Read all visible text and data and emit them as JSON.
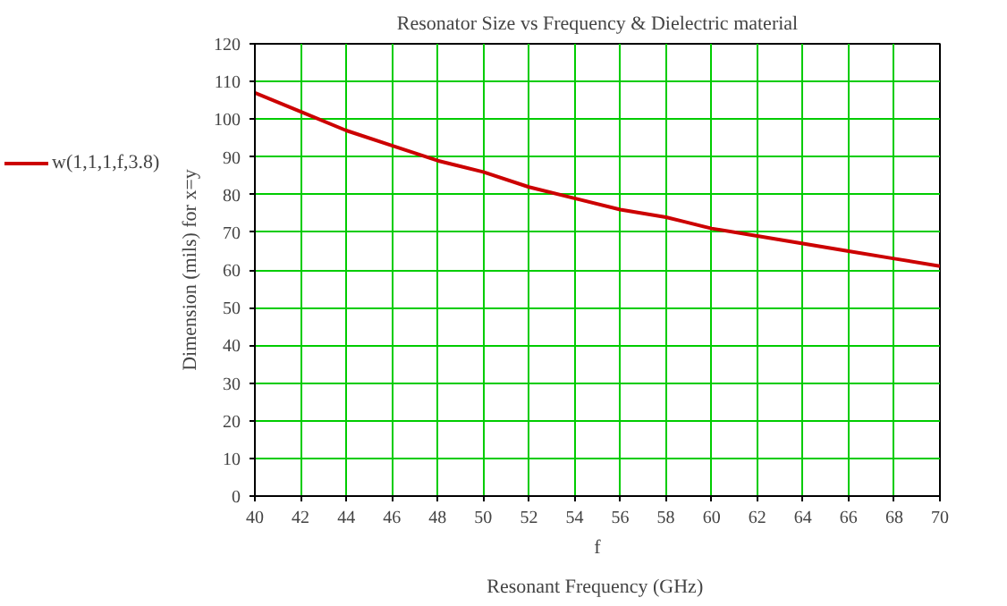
{
  "chart_data": {
    "type": "line",
    "title": "Resonator Size vs Frequency & Dielectric material",
    "xlabel": "f",
    "ylabel": "Dimension (mils) for x=y",
    "annotations": [
      "Resonant Frequency  (GHz)"
    ],
    "x": [
      40,
      42,
      44,
      46,
      48,
      50,
      52,
      54,
      56,
      58,
      60,
      62,
      64,
      66,
      68,
      70
    ],
    "series": [
      {
        "name": "w(1,1,1,f,3.8)",
        "color": "#cc0000",
        "values": [
          107,
          102,
          97,
          93,
          89,
          86,
          82,
          79,
          76,
          74,
          71,
          69,
          67,
          65,
          63,
          61
        ]
      }
    ],
    "xlim": [
      40,
      70
    ],
    "xticks": [
      40,
      42,
      44,
      46,
      48,
      50,
      52,
      54,
      56,
      58,
      60,
      62,
      64,
      66,
      68,
      70
    ],
    "ylim": [
      0,
      120
    ],
    "yticks": [
      0,
      10,
      20,
      30,
      40,
      50,
      60,
      70,
      80,
      90,
      100,
      110,
      120
    ],
    "grid": true,
    "legend": "left",
    "line_style": "solid",
    "marker": "none"
  }
}
